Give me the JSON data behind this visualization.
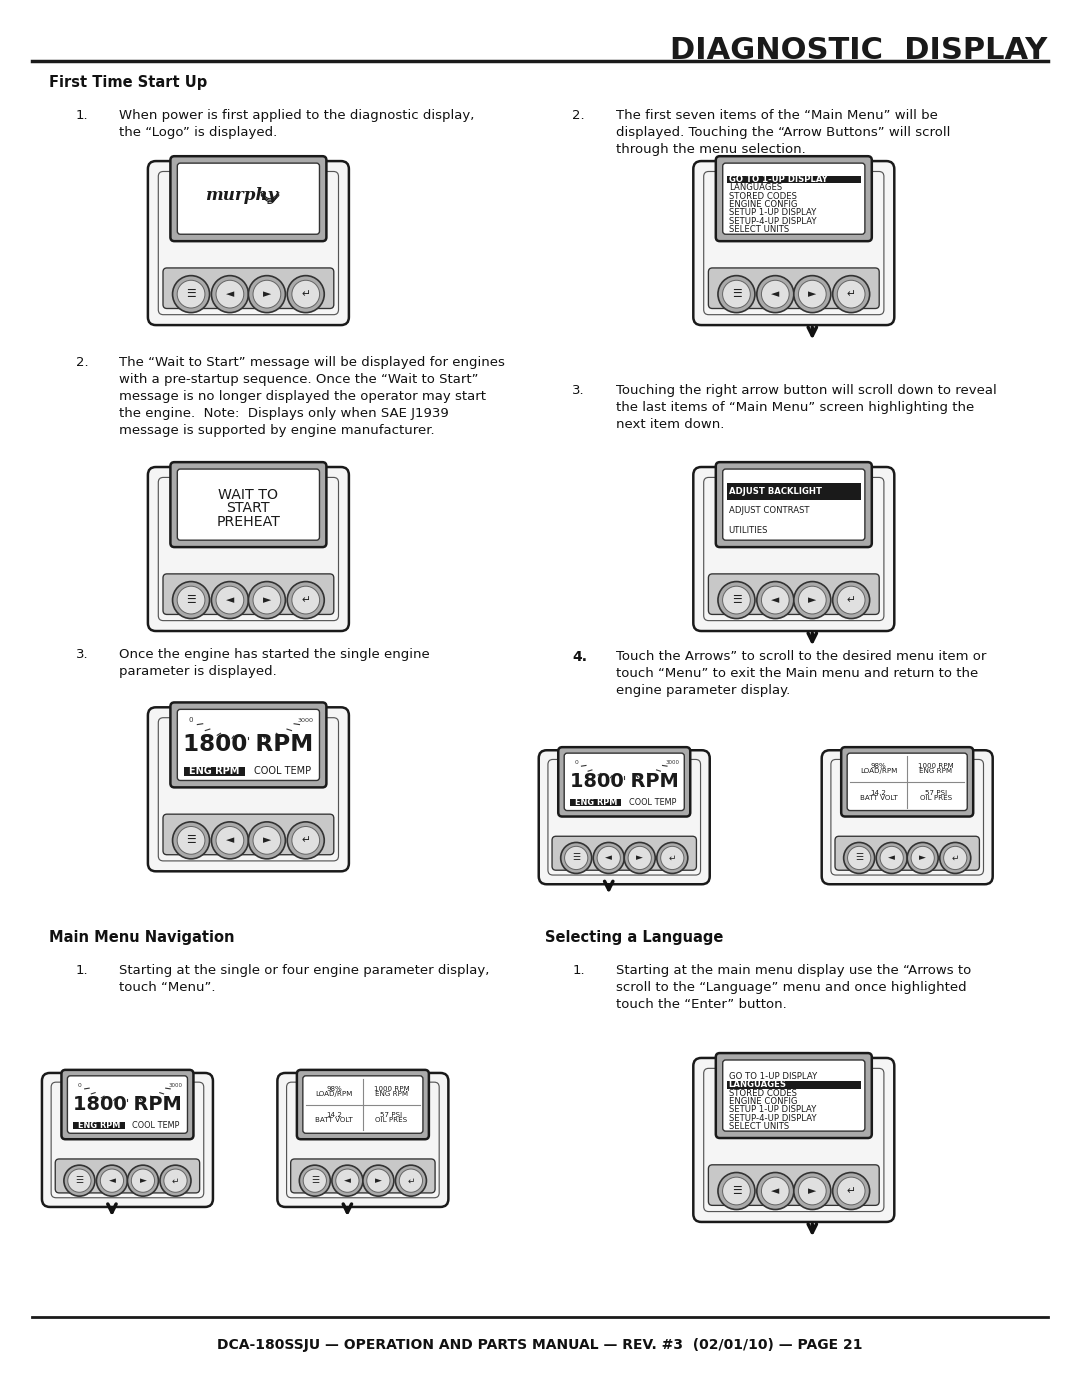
{
  "title": "DIAGNOSTIC  DISPLAY",
  "footer": "DCA-180SSJU — OPERATION AND PARTS MANUAL — REV. #3  (02/01/10) — PAGE 21",
  "bg_color": "#ffffff",
  "heading_ftsu": "First Time Start Up",
  "heading_mmn": "Main Menu Navigation",
  "heading_sal": "Selecting a Language",
  "item1_left": "When power is first applied to the diagnostic display,\nthe “Logo” is displayed.",
  "item2_left": "The “Wait to Start” message will be displayed for engines\nwith a pre-startup sequence. Once the “Wait to Start”\nmessage is no longer displayed the operator may start\nthe engine.  Note:  Displays only when SAE J1939\nmessage is supported by engine manufacturer.",
  "item3_left": "Once the engine has started the single engine\nparameter is displayed.",
  "item1_mmn": "Starting at the single or four engine parameter display,\ntouch “Menu”.",
  "item2_right": "The first seven items of the “Main Menu” will be\ndisplayed. Touching the “Arrow Buttons” will scroll\nthrough the menu selection.",
  "item3_right": "Touching the right arrow button will scroll down to reveal\nthe last items of “Main Menu” screen highlighting the\nnext item down.",
  "item4_right": "Touch the Arrows” to scroll to the desired menu item or\ntouch “Menu” to exit the Main menu and return to the\nengine parameter display.",
  "item1_sal": "Starting at the main menu display use the “Arrows to\nscroll to the “Language” menu and once highlighted\ntouch the “Enter” button.",
  "menu_items_full": [
    "GO TO 1-UP DISPLAY",
    "LANGUAGES",
    "STORED CODES",
    "ENGINE CONFIG",
    "SETUP 1-UP DISPLAY",
    "SETUP-4-UP DISPLAY",
    "SELECT UNITS"
  ],
  "menu_items_short": [
    "ADJUST BACKLIGHT",
    "ADJUST CONTRAST",
    "UTILITIES"
  ]
}
